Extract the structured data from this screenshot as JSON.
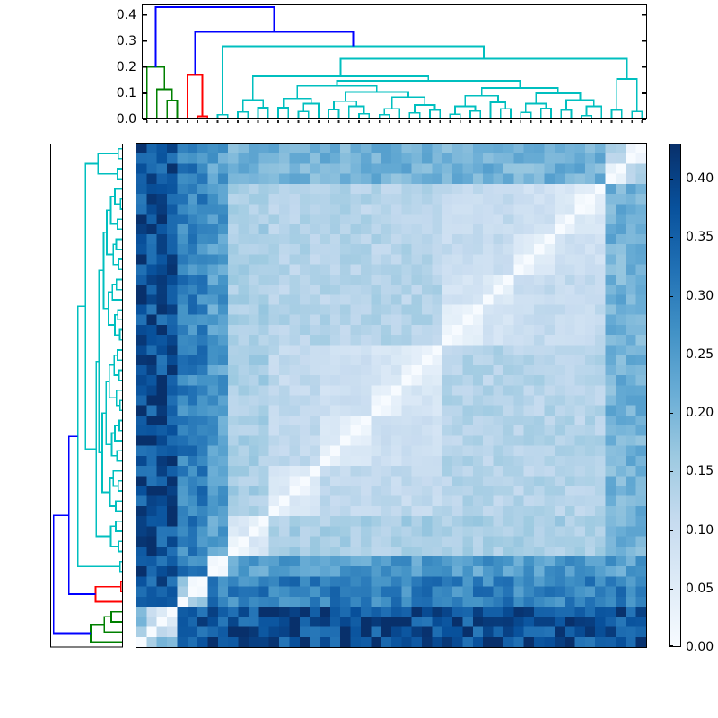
{
  "figure": {
    "background": "#ffffff",
    "kind": "hierarchical clustering heatmap with dendrograms and colorbar"
  },
  "chart_data": {
    "type": "heatmap",
    "subtype": "clustermap",
    "n_leaves": 50,
    "top_dendrogram_axis": {
      "tick_labels": [
        "0.0",
        "0.1",
        "0.2",
        "0.3",
        "0.4"
      ],
      "tick_values": [
        0.0,
        0.1,
        0.2,
        0.3,
        0.4
      ],
      "ylim": [
        0,
        0.44
      ]
    },
    "left_dendrogram_axis": {
      "tick_labels": [],
      "xlim": [
        0,
        0.45
      ],
      "orientation": "left",
      "row_order": "reversed column order so the matrix anti-diagonal is zero"
    },
    "colorbar": {
      "tick_labels": [
        "0.00",
        "0.05",
        "0.10",
        "0.15",
        "0.20",
        "0.25",
        "0.30",
        "0.35",
        "0.40"
      ],
      "tick_values": [
        0.0,
        0.05,
        0.1,
        0.15,
        0.2,
        0.25,
        0.3,
        0.35,
        0.4
      ],
      "vmin": 0.0,
      "vmax": 0.43
    },
    "colormap": {
      "name": "Blues",
      "stops": [
        [
          0.0,
          "#f7fbff"
        ],
        [
          0.125,
          "#deebf7"
        ],
        [
          0.25,
          "#c6dbef"
        ],
        [
          0.375,
          "#9ecae1"
        ],
        [
          0.5,
          "#6baed6"
        ],
        [
          0.625,
          "#4292c6"
        ],
        [
          0.75,
          "#2171b5"
        ],
        [
          0.875,
          "#08519c"
        ],
        [
          1.0,
          "#08306b"
        ]
      ]
    },
    "link_colors": {
      "cluster_palette": [
        "#008000",
        "#ff0000",
        "#00bfbf"
      ],
      "above_threshold": "#0000ff",
      "color_threshold": 0.3
    },
    "linkage_tree": [
      0.43,
      [
        0.2,
        0,
        [
          0.115,
          0,
          [
            0.072,
            0,
            0
          ]
        ]
      ],
      [
        0.335,
        [
          0.17,
          0,
          [
            0.012,
            0,
            0
          ]
        ],
        [
          0.28,
          [
            0.018,
            0,
            0
          ],
          [
            0.232,
            [
              0.165,
              [
                0.075,
                [
                  0.028,
                  0,
                  0
                ],
                [
                  0.045,
                  0,
                  0
                ]
              ],
              [
                0.148,
                [
                  0.128,
                  [
                    0.08,
                    [
                      0.045,
                      0,
                      0
                    ],
                    [
                      0.06,
                      [
                        0.03,
                        0,
                        0
                      ],
                      0
                    ]
                  ],
                  [
                    0.105,
                    [
                      0.07,
                      [
                        0.038,
                        0,
                        0
                      ],
                      [
                        0.05,
                        0,
                        [
                          0.022,
                          0,
                          0
                        ]
                      ]
                    ],
                    [
                      0.085,
                      [
                        0.04,
                        [
                          0.018,
                          0,
                          0
                        ],
                        0
                      ],
                      [
                        0.055,
                        [
                          0.025,
                          0,
                          0
                        ],
                        [
                          0.035,
                          0,
                          0
                        ]
                      ]
                    ]
                  ]
                ],
                [
                  0.12,
                  [
                    0.09,
                    [
                      0.05,
                      [
                        0.02,
                        0,
                        0
                      ],
                      [
                        0.032,
                        0,
                        0
                      ]
                    ],
                    [
                      0.065,
                      0,
                      [
                        0.04,
                        0,
                        0
                      ]
                    ]
                  ],
                  [
                    0.1,
                    [
                      0.06,
                      [
                        0.027,
                        0,
                        0
                      ],
                      [
                        0.042,
                        0,
                        0
                      ]
                    ],
                    [
                      0.075,
                      [
                        0.035,
                        0,
                        0
                      ],
                      [
                        0.05,
                        [
                          0.015,
                          0,
                          0
                        ],
                        0
                      ]
                    ]
                  ]
                ]
              ]
            ],
            [
              0.155,
              [
                0.035,
                0,
                0
              ],
              [
                0.03,
                0,
                0
              ]
            ]
          ]
        ]
      ]
    ],
    "heatmap_values": {
      "definition": "cell(i,j) = cophenetic distance between row leaf (49-i) and column leaf j of linkage_tree; anti-diagonal = 0 (white)",
      "noise_base": 0.72,
      "noise_amplitude": 0.33
    }
  }
}
